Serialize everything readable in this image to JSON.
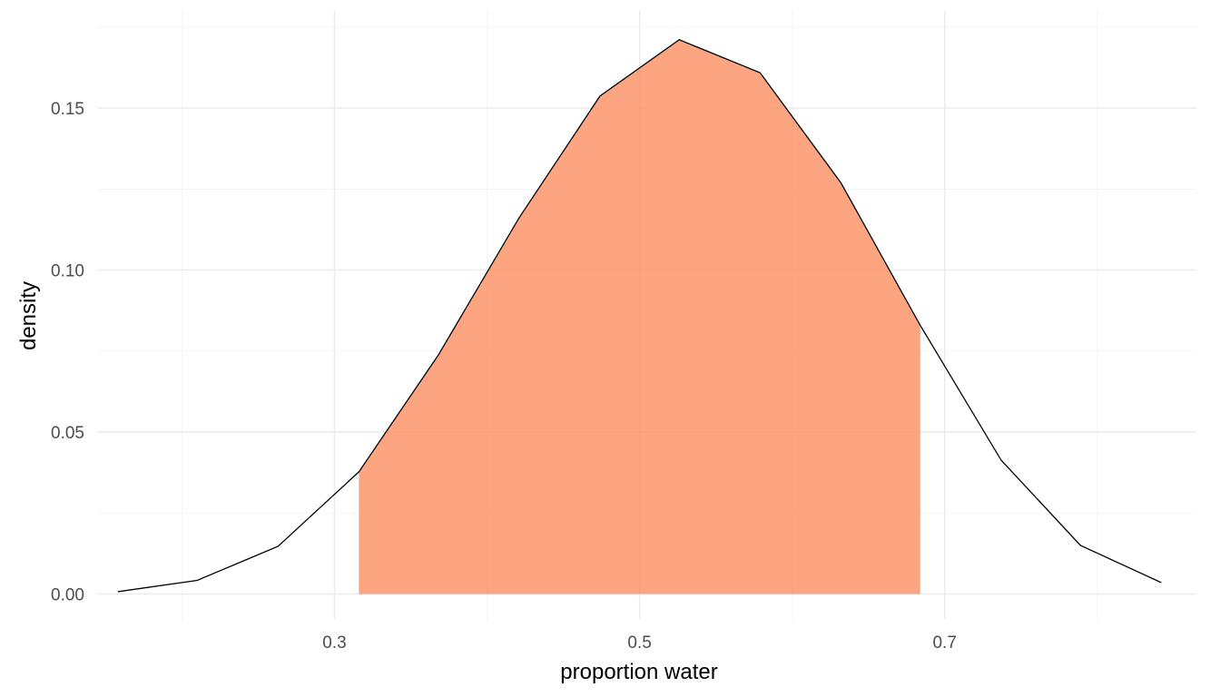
{
  "chart_data": {
    "type": "area",
    "title": "",
    "xlabel": "proportion water",
    "ylabel": "density",
    "xlim": [
      0.145,
      0.865
    ],
    "ylim": [
      -0.008,
      0.18
    ],
    "x_ticks": [
      {
        "value": 0.3,
        "label": "0.3"
      },
      {
        "value": 0.5,
        "label": "0.5"
      },
      {
        "value": 0.7,
        "label": "0.7"
      }
    ],
    "x_minor_ticks": [
      0.2,
      0.4,
      0.6,
      0.8
    ],
    "y_ticks": [
      {
        "value": 0.0,
        "label": "0.00"
      },
      {
        "value": 0.05,
        "label": "0.05"
      },
      {
        "value": 0.1,
        "label": "0.10"
      },
      {
        "value": 0.15,
        "label": "0.15"
      }
    ],
    "y_minor_ticks": [
      0.025,
      0.075,
      0.125,
      0.175
    ],
    "grid": true,
    "legend": "none",
    "series": [
      {
        "x": [
          0.158,
          0.21,
          0.263,
          0.316,
          0.368,
          0.421,
          0.474,
          0.526,
          0.579,
          0.632,
          0.684,
          0.737,
          0.789,
          0.842
        ],
        "y": [
          0.0007,
          0.0042,
          0.0147,
          0.0377,
          0.0737,
          0.1161,
          0.1537,
          0.1711,
          0.1609,
          0.1269,
          0.0829,
          0.0413,
          0.015,
          0.0035
        ]
      }
    ],
    "shaded_interval": [
      0.316,
      0.684
    ],
    "colors": {
      "fill": "#fc8d62",
      "fill_opacity": 0.8,
      "line": "#000000"
    }
  }
}
